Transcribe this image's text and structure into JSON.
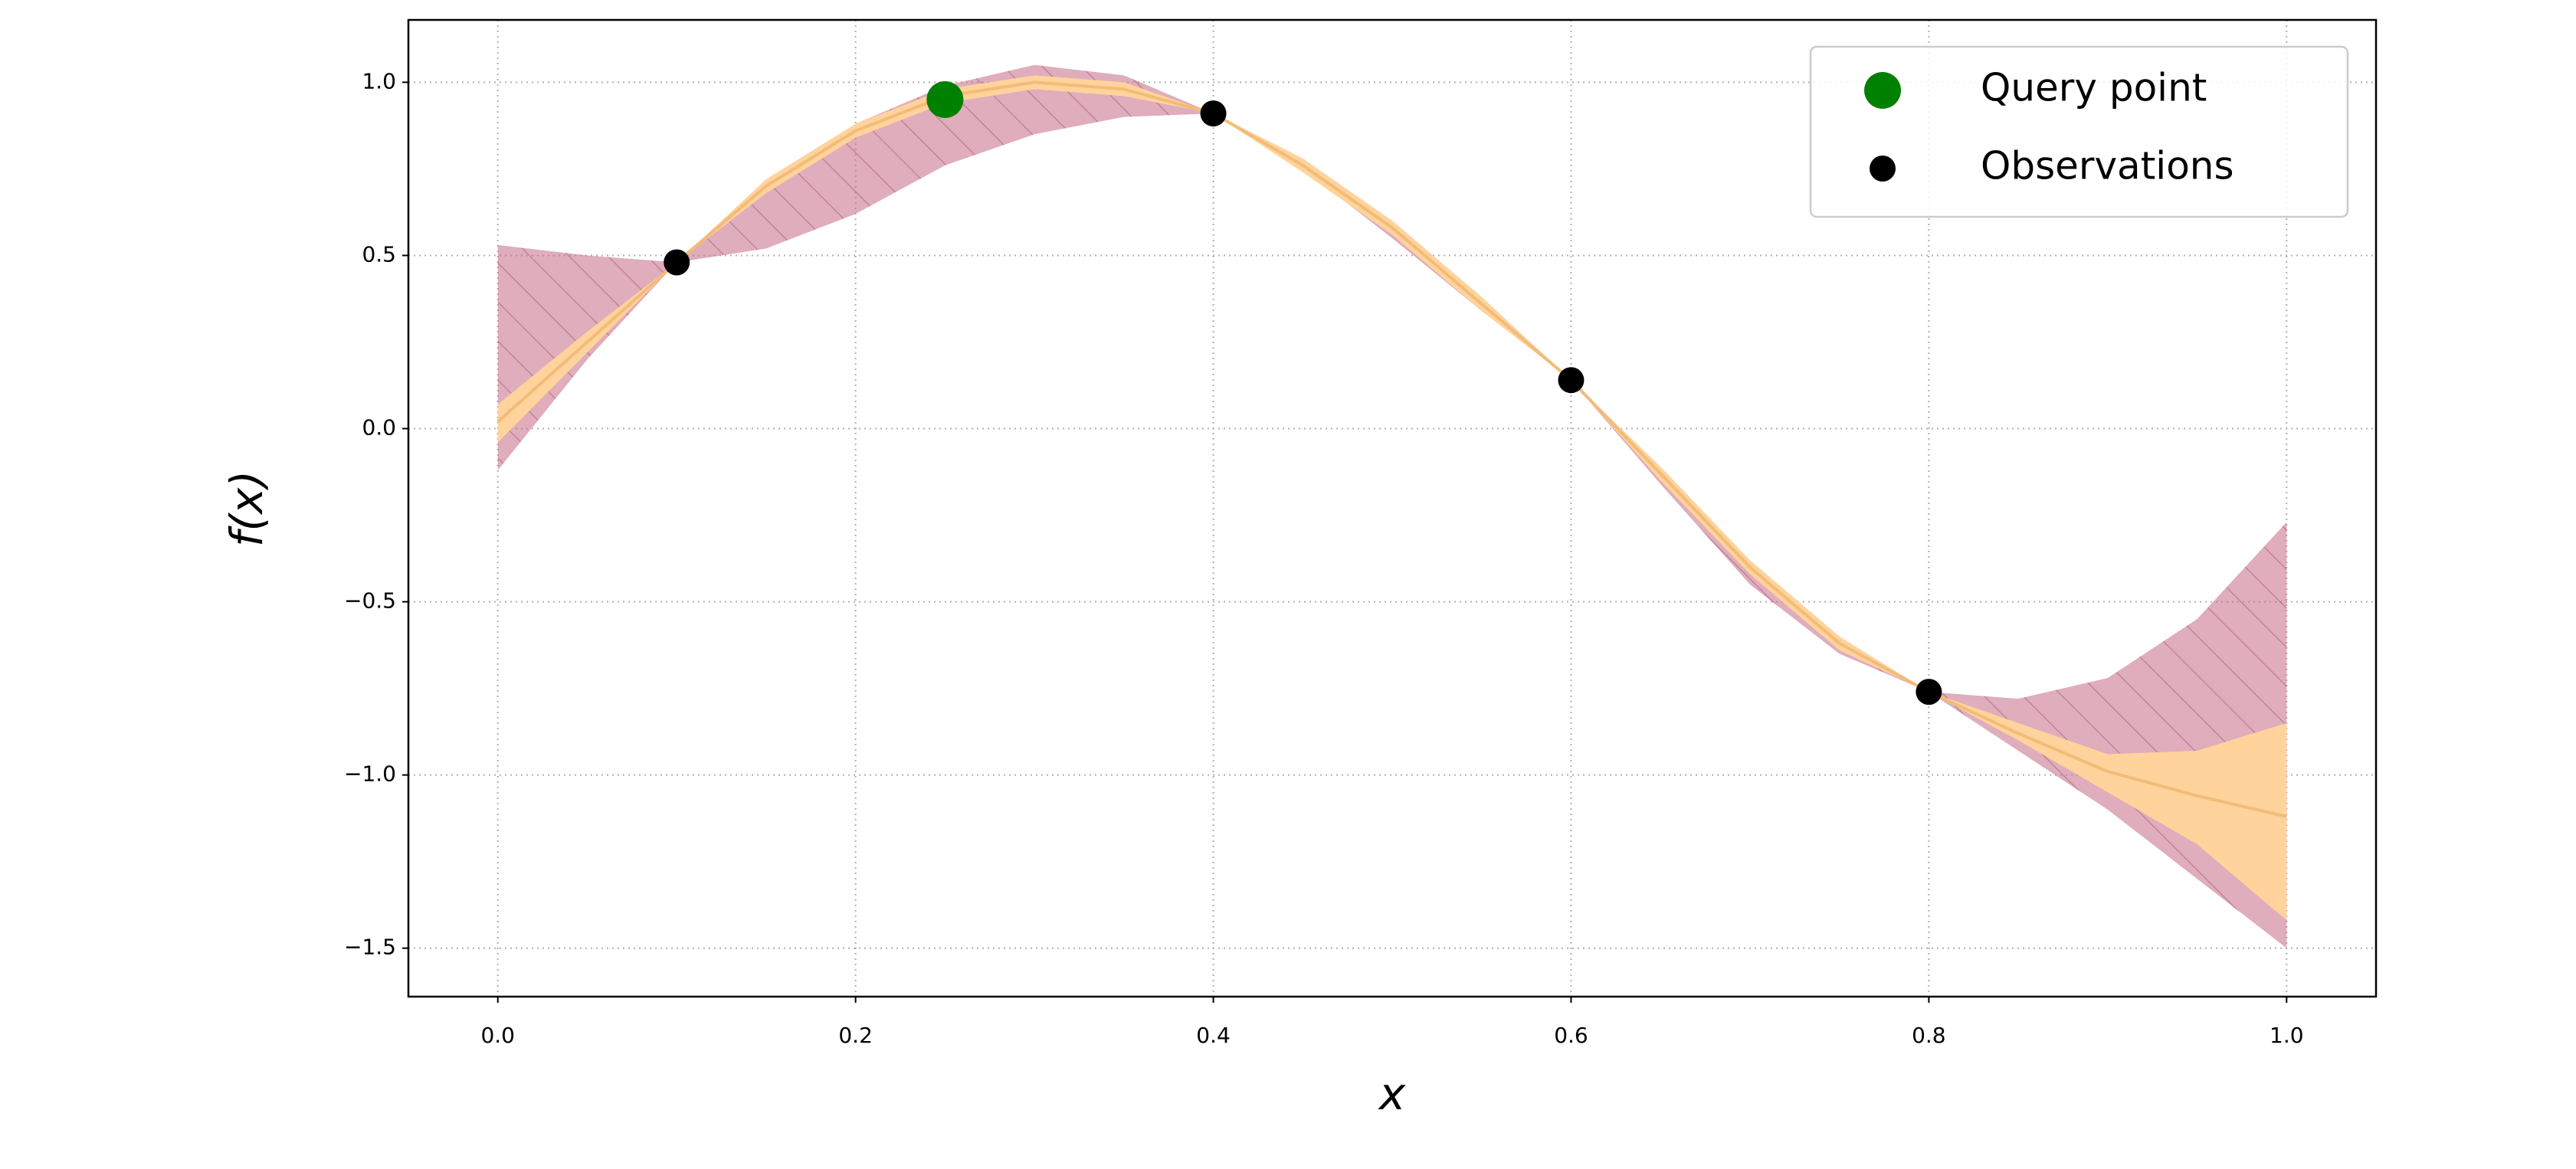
{
  "chart_data": {
    "type": "line",
    "xlabel": "x",
    "ylabel": "f(x)",
    "xlim": [
      -0.05,
      1.05
    ],
    "ylim": [
      -1.64,
      1.18
    ],
    "xticks": [
      {
        "value": 0,
        "label": "0.0"
      },
      0.2,
      0.4,
      0.6,
      0.8,
      {
        "value": 1,
        "label": "1.0"
      }
    ],
    "yticks": [
      {
        "value": -1.5,
        "label": "−1.5"
      },
      {
        "value": -1,
        "label": "−1.0"
      },
      {
        "value": -0.5,
        "label": "−0.5"
      },
      {
        "value": 0,
        "label": "0.0"
      },
      0.5,
      {
        "value": 1,
        "label": "1.0"
      }
    ],
    "grid": true,
    "legend": "upper right",
    "x": [
      0,
      0.05,
      0.1,
      0.15,
      0.2,
      0.25,
      0.3,
      0.35,
      0.4,
      0.45,
      0.5,
      0.55,
      0.6,
      0.65,
      0.7,
      0.75,
      0.8,
      0.85,
      0.9,
      0.95,
      1
    ],
    "series": [
      {
        "type": "band",
        "color": "#c46a85",
        "hatch": true,
        "upper": [
          0.53,
          0.5,
          0.48,
          0.7,
          0.88,
          0.99,
          1.05,
          1.02,
          0.91,
          0.78,
          0.6,
          0.38,
          0.14,
          -0.12,
          -0.4,
          -0.62,
          -0.76,
          -0.78,
          -0.72,
          -0.55,
          -0.27
        ],
        "lower": [
          -0.12,
          0.2,
          0.48,
          0.52,
          0.62,
          0.76,
          0.85,
          0.9,
          0.91,
          0.75,
          0.55,
          0.34,
          0.14,
          -0.16,
          -0.45,
          -0.65,
          -0.76,
          -0.93,
          -1.1,
          -1.3,
          -1.5
        ]
      },
      {
        "type": "band",
        "color": "#ffd39b",
        "upper": [
          0.07,
          0.28,
          0.48,
          0.72,
          0.88,
          0.98,
          1.02,
          1.0,
          0.91,
          0.78,
          0.6,
          0.38,
          0.14,
          -0.11,
          -0.38,
          -0.6,
          -0.76,
          -0.85,
          -0.94,
          -0.93,
          -0.85
        ],
        "lower": [
          -0.04,
          0.22,
          0.48,
          0.68,
          0.84,
          0.94,
          0.98,
          0.96,
          0.91,
          0.74,
          0.56,
          0.34,
          0.14,
          -0.15,
          -0.42,
          -0.64,
          -0.76,
          -0.9,
          -1.05,
          -1.2,
          -1.42
        ]
      },
      {
        "type": "line",
        "color": "#f2bc78",
        "values": [
          0.02,
          0.25,
          0.48,
          0.7,
          0.86,
          0.96,
          1.0,
          0.98,
          0.91,
          0.76,
          0.58,
          0.36,
          0.14,
          -0.13,
          -0.4,
          -0.62,
          -0.76,
          -0.88,
          -0.99,
          -1.06,
          -1.12
        ]
      },
      {
        "type": "scatter",
        "name": "Query point",
        "color": "#008000",
        "size": 24,
        "x": [
          0.25
        ],
        "values": [
          0.95
        ]
      },
      {
        "type": "scatter",
        "name": "Observations",
        "color": "#000000",
        "size": 17,
        "x": [
          0.1,
          0.4,
          0.6,
          0.8
        ],
        "values": [
          0.48,
          0.91,
          0.14,
          -0.76
        ]
      }
    ]
  }
}
